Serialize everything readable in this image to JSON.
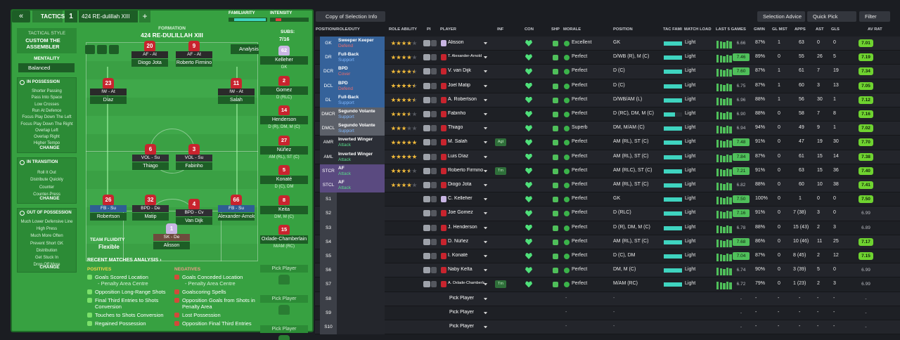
{
  "header": {
    "back": "«",
    "tab": "TACTICS",
    "slot": "1",
    "tactic_name": "424 RE-dulillah XIII",
    "add": "+",
    "familiarity": "FAMILIARITY",
    "intensity": "INTENSITY"
  },
  "sidebar": {
    "style_label": "TACTICAL STYLE",
    "style": "CUSTOM THE ASSEMBLER",
    "mentality_label": "MENTALITY",
    "mentality": "Balanced",
    "sections": [
      {
        "title": "IN POSSESSION",
        "items": [
          "Shorter Passing",
          "Pass Into Space",
          "Low Crosses",
          "Run At Defence",
          "Focus Play Down The Left",
          "Focus Play Down The Right",
          "Overlap Left",
          "Overlap Right",
          "Higher Tempo"
        ],
        "button": "CHANGE"
      },
      {
        "title": "IN TRANSITION",
        "items": [
          "Roll It Out",
          "Distribute Quickly",
          "Counter",
          "Counter-Press"
        ],
        "button": "CHANGE"
      },
      {
        "title": "OUT OF POSSESSION",
        "items": [
          "Much Lower Defensive Line",
          "High Press",
          "Much More Often",
          "Prevent Short GK",
          "Distribution",
          "Get Stuck In",
          "Drop Off More"
        ],
        "button": "CHANGE"
      }
    ]
  },
  "pitch": {
    "formation_label": "FORMATION",
    "formation": "424 RE-DULILLAH XIII",
    "analysis": "Analysis",
    "players": [
      {
        "number": "20",
        "role": "AF - At",
        "name": "Diogo Jota"
      },
      {
        "number": "9",
        "role": "AF - At",
        "name": "Roberto Firmino"
      },
      {
        "number": "23",
        "role": "IW - At",
        "name": "Díaz"
      },
      {
        "number": "11",
        "role": "IW - At",
        "name": "Salah"
      },
      {
        "number": "6",
        "role": "VOL - Su",
        "name": "Thiago"
      },
      {
        "number": "3",
        "role": "VOL - Su",
        "name": "Fabinho"
      },
      {
        "number": "26",
        "role": "FB - Su",
        "name": "Robertson"
      },
      {
        "number": "32",
        "role": "BPD - De",
        "name": "Matip"
      },
      {
        "number": "4",
        "role": "BPD - Cv",
        "name": "Van Dijk"
      },
      {
        "number": "66",
        "role": "FB - Su",
        "name": "Alexander-Arnold"
      },
      {
        "number": "1",
        "role": "SK - De",
        "name": "Alisson"
      }
    ],
    "fluidity_label": "TEAM FLUIDITY",
    "fluidity": "Flexible"
  },
  "subs": {
    "label": "SUBS:",
    "count": "7/16",
    "players": [
      {
        "number": "62",
        "name": "Kelleher",
        "position": "GK"
      },
      {
        "number": "2",
        "name": "Gomez",
        "position": "D (RLC)"
      },
      {
        "number": "14",
        "name": "Henderson",
        "position": "D (R), DM, M (C)"
      },
      {
        "number": "27",
        "name": "Núñez",
        "position": "AM (RL), ST (C)"
      },
      {
        "number": "5",
        "name": "Konaté",
        "position": "D (C), DM"
      },
      {
        "number": "8",
        "name": "Keita",
        "position": "DM, M (C)"
      },
      {
        "number": "15",
        "name": "Oxlade-Chamberlain",
        "position": "M/AM (RC)"
      }
    ],
    "empty": [
      "Pick Player",
      "Pick Player",
      "Pick Player"
    ]
  },
  "analysis": {
    "title": "RECENT MATCHES ANALYSIS ›",
    "positives_label": "POSITIVES",
    "positives": [
      {
        "text": "Goals Scored Location",
        "detail": "- Penalty Area Centre"
      },
      {
        "text": "Opposition Long-Range Shots"
      },
      {
        "text": "Final Third Entries to Shots Conversion"
      },
      {
        "text": "Touches to Shots Conversion"
      },
      {
        "text": "Regained Possession"
      }
    ],
    "negatives_label": "NEGATIVES",
    "negatives": [
      {
        "text": "Goals Conceded Location",
        "detail": "- Penalty Area Centre"
      },
      {
        "text": "Goalscoring Spells"
      },
      {
        "text": "Opposition Goals from Shots in Penalty Area"
      },
      {
        "text": "Lost Possession"
      },
      {
        "text": "Opposition Final Third Entries"
      }
    ]
  },
  "toolbar": {
    "view": "Copy of Selection Info",
    "buttons": [
      "Selection Advice",
      "Quick Pick",
      "Filter"
    ]
  },
  "table": {
    "columns": [
      "POSITION/ROLE/DUTY",
      "ROLE ABILITY",
      "PI",
      "PLAYER",
      "INF",
      "CON",
      "SHP",
      "MORALE",
      "POSITION",
      "TAC FAMI",
      "MATCH LOAD",
      "LAST 5 GAMES",
      "GWIN",
      "GL MST",
      "APPS",
      "AST",
      "GLS",
      "AV RAT"
    ],
    "rows": [
      {
        "slot": "GK",
        "role": "Sweeper Keeper",
        "duty": "Defend",
        "ability": 4,
        "player": "Alisson",
        "morale": "Excellent",
        "position": "GK",
        "load": "Light",
        "last5": "6.66",
        "gwin": "87%",
        "glmst": "1",
        "apps": "63",
        "ast": "0",
        "gls": "0",
        "rating": "7.01"
      },
      {
        "slot": "DR",
        "role": "Full-Back",
        "duty": "Support",
        "ability": 4,
        "player": "T. Alexander-Arnold",
        "morale": "Perfect",
        "position": "D/WB (R), M (C)",
        "load": "Light",
        "last5": "7.46",
        "gwin": "89%",
        "glmst": "0",
        "apps": "55",
        "ast": "26",
        "gls": "5",
        "rating": "7.19"
      },
      {
        "slot": "DCR",
        "role": "BPD",
        "duty": "Cover",
        "ability": 4.5,
        "player": "V. van Dijk",
        "morale": "Perfect",
        "position": "D (C)",
        "load": "Light",
        "last5": "7.60",
        "gwin": "87%",
        "glmst": "1",
        "apps": "61",
        "ast": "7",
        "gls": "19",
        "rating": "7.34"
      },
      {
        "slot": "DCL",
        "role": "BPD",
        "duty": "Defend",
        "ability": 4.5,
        "player": "Joel Matip",
        "morale": "Perfect",
        "position": "D (C)",
        "load": "Light",
        "last5": "6.75",
        "gwin": "87%",
        "glmst": "1",
        "apps": "60",
        "ast": "3",
        "gls": "13",
        "rating": "7.05"
      },
      {
        "slot": "DL",
        "role": "Full-Back",
        "duty": "Support",
        "ability": 4.5,
        "player": "A. Robertson",
        "morale": "Perfect",
        "position": "D/WB/AM (L)",
        "load": "Light",
        "last5": "6.96",
        "gwin": "88%",
        "glmst": "1",
        "apps": "56",
        "ast": "30",
        "gls": "1",
        "rating": "7.12"
      },
      {
        "slot": "DMCR",
        "role": "Segundo Volante",
        "duty": "Support",
        "ability": 3.5,
        "player": "Fabinho",
        "morale": "Perfect",
        "position": "D (RC), DM, M (C)",
        "load": "Light",
        "last5": "6.90",
        "gwin": "88%",
        "glmst": "0",
        "apps": "58",
        "ast": "7",
        "gls": "8",
        "rating": "7.16"
      },
      {
        "slot": "DMCL",
        "role": "Segundo Volante",
        "duty": "Support",
        "ability": 3,
        "player": "Thiago",
        "morale": "Superb",
        "position": "DM, M/AM (C)",
        "load": "Light",
        "last5": "6.94",
        "gwin": "94%",
        "glmst": "0",
        "apps": "49",
        "ast": "9",
        "gls": "1",
        "rating": "7.02"
      },
      {
        "slot": "AMR",
        "role": "Inverted Winger",
        "duty": "Attack",
        "ability": 5,
        "player": "M. Salah",
        "inf": "Agt",
        "morale": "Perfect",
        "position": "AM (RL), ST (C)",
        "load": "Light",
        "last5": "7.48",
        "gwin": "91%",
        "glmst": "0",
        "apps": "47",
        "ast": "19",
        "gls": "30",
        "rating": "7.70"
      },
      {
        "slot": "AML",
        "role": "Inverted Winger",
        "duty": "Attack",
        "ability": 5,
        "player": "Luis Díaz",
        "morale": "Perfect",
        "position": "AM (RL), ST (C)",
        "load": "Light",
        "last5": "7.84",
        "gwin": "87%",
        "glmst": "0",
        "apps": "61",
        "ast": "15",
        "gls": "14",
        "rating": "7.38"
      },
      {
        "slot": "STCR",
        "role": "AF",
        "duty": "Attack",
        "ability": 3.5,
        "player": "Roberto Firmino",
        "inf": "Tm",
        "morale": "Perfect",
        "position": "AM (RLC), ST (C)",
        "load": "Light",
        "last5": "7.21",
        "gwin": "91%",
        "glmst": "0",
        "apps": "63",
        "ast": "15",
        "gls": "36",
        "rating": "7.40"
      },
      {
        "slot": "STCL",
        "role": "AF",
        "duty": "Attack",
        "ability": 4,
        "player": "Diogo Jota",
        "morale": "Perfect",
        "position": "AM (RL), ST (C)",
        "load": "Light",
        "last5": "6.82",
        "gwin": "88%",
        "glmst": "0",
        "apps": "60",
        "ast": "10",
        "gls": "38",
        "rating": "7.41"
      },
      {
        "slot": "S1",
        "player": "C. Kelleher",
        "morale": "Perfect",
        "position": "GK",
        "load": "Light",
        "last5": "7.50",
        "gwin": "100%",
        "glmst": "0",
        "apps": "1",
        "ast": "0",
        "gls": "0",
        "rating": "7.50"
      },
      {
        "slot": "S2",
        "player": "Joe Gomez",
        "morale": "Perfect",
        "position": "D (RLC)",
        "load": "Light",
        "last5": "7.16",
        "gwin": "91%",
        "glmst": "0",
        "apps": "7 (38)",
        "ast": "3",
        "gls": "0",
        "rating": "6.99"
      },
      {
        "slot": "S3",
        "player": "J. Henderson",
        "morale": "Perfect",
        "position": "D (R), DM, M (C)",
        "load": "Light",
        "last5": "6.78",
        "gwin": "88%",
        "glmst": "0",
        "apps": "15 (43)",
        "ast": "2",
        "gls": "3",
        "rating": "6.89"
      },
      {
        "slot": "S4",
        "player": "D. Núñez",
        "morale": "Perfect",
        "position": "AM (RL), ST (C)",
        "load": "Light",
        "last5": "7.68",
        "gwin": "86%",
        "glmst": "0",
        "apps": "10 (46)",
        "ast": "11",
        "gls": "25",
        "rating": "7.17"
      },
      {
        "slot": "S5",
        "player": "I. Konaté",
        "morale": "Perfect",
        "position": "D (C), DM",
        "load": "Light",
        "last5": "7.04",
        "gwin": "87%",
        "glmst": "0",
        "apps": "8 (45)",
        "ast": "2",
        "gls": "12",
        "rating": "7.15"
      },
      {
        "slot": "S6",
        "player": "Naby Keïta",
        "morale": "Perfect",
        "position": "DM, M (C)",
        "load": "Light",
        "last5": "6.74",
        "gwin": "90%",
        "glmst": "0",
        "apps": "3 (39)",
        "ast": "5",
        "gls": "0",
        "rating": "6.99"
      },
      {
        "slot": "S7",
        "player": "A. Oxlade-Chamberlain",
        "inf": "Tm",
        "morale": "Perfect",
        "position": "M/AM (RC)",
        "load": "Light",
        "last5": "6.72",
        "gwin": "79%",
        "glmst": "0",
        "apps": "1 (23)",
        "ast": "2",
        "gls": "3",
        "rating": "6.99"
      },
      {
        "slot": "S8",
        "player": "Pick Player",
        "morale": "-",
        "position": "-",
        "last5": "-",
        "gwin": "-",
        "glmst": "-",
        "apps": "-",
        "ast": "-",
        "gls": "-",
        "rating": "-"
      },
      {
        "slot": "S9",
        "player": "Pick Player",
        "morale": "-",
        "position": "-",
        "last5": "-",
        "gwin": "-",
        "glmst": "-",
        "apps": "-",
        "ast": "-",
        "gls": "-",
        "rating": "-"
      },
      {
        "slot": "S10",
        "player": "Pick Player",
        "morale": "-",
        "position": "-",
        "last5": "-",
        "gwin": "-",
        "glmst": "-",
        "apps": "-",
        "ast": "-",
        "gls": "-",
        "rating": "-"
      }
    ]
  }
}
